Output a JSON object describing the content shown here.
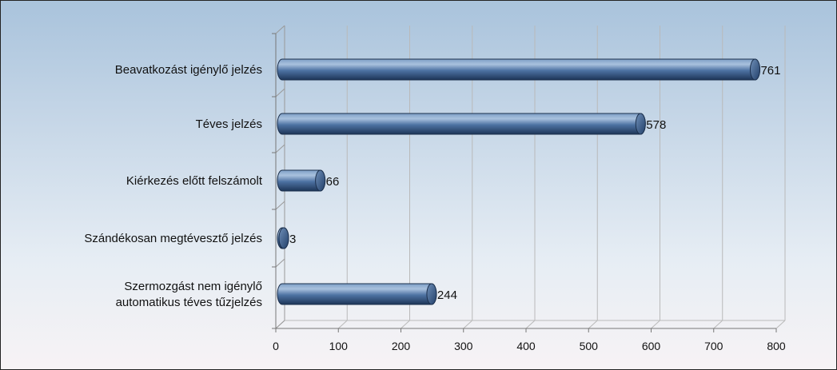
{
  "chart_data": {
    "type": "bar",
    "orientation": "horizontal",
    "style": "3d-cylinder",
    "categories": [
      [
        "Beavatkozást igénylő jelzés"
      ],
      [
        "Téves jelzés"
      ],
      [
        "Kiérkezés előtt felszámolt"
      ],
      [
        "Szándékosan megtévesztő jelzés"
      ],
      [
        "Szermozgást nem igénylő",
        "automatikus téves tűzjelzés"
      ]
    ],
    "values": [
      761,
      578,
      66,
      3,
      244
    ],
    "xticks": [
      0,
      100,
      200,
      300,
      400,
      500,
      600,
      700,
      800
    ],
    "xlim": [
      0,
      800
    ],
    "grid": true,
    "legend": false,
    "colors": {
      "bar": "#4a6f9e",
      "bar_dark": "#1f3a5f",
      "bar_light": "#9cb6d6",
      "grid": "#b9b9b9"
    }
  }
}
